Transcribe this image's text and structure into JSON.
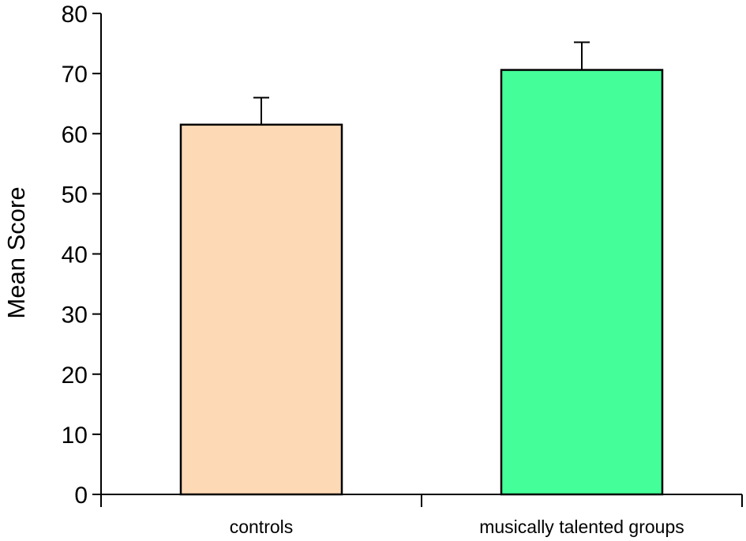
{
  "chart_data": {
    "type": "bar",
    "title": "",
    "xlabel": "",
    "ylabel": "Mean Score",
    "ylim": [
      0,
      80
    ],
    "yticks": [
      0,
      10,
      20,
      30,
      40,
      50,
      60,
      70,
      80
    ],
    "grid": false,
    "legend": "none",
    "categories": [
      "controls",
      "musically talented groups"
    ],
    "values": [
      61.5,
      70.6
    ],
    "error_upper": [
      4.5,
      4.6
    ],
    "colors": [
      "#fdd9b5",
      "#44ff99"
    ],
    "axis_color": "#000000"
  }
}
